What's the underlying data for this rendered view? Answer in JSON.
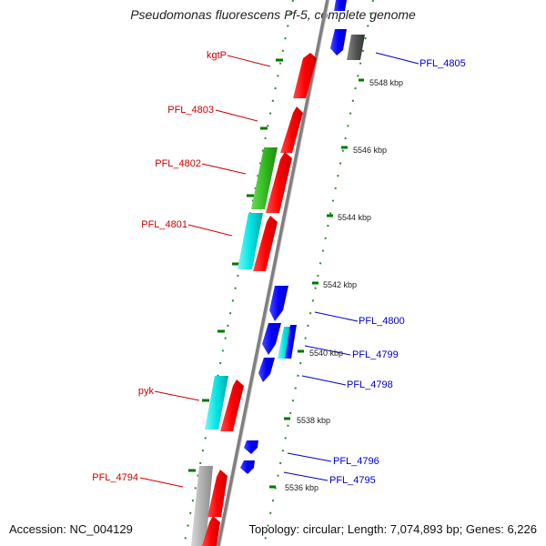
{
  "title": "Pseudomonas fluorescens Pf-5, complete genome",
  "footer": {
    "accession": "Accession: NC_004129",
    "summary": "Topology: circular; Length: 7,074,893 bp; Genes: 6,226"
  },
  "colors": {
    "forward_label": "#cc0000",
    "reverse_label": "#0000cc",
    "forward_gene": "#ff0000",
    "reverse_gene": "#0000ff",
    "rna": "#00e5e5",
    "other": "#33cc33",
    "gray": "#b0b0b0",
    "tick": "#007700",
    "backbone": "#8c8c8c"
  },
  "scale_labels": [
    "5548 kbp",
    "5546 kbp",
    "5544 kbp",
    "5542 kbp",
    "5540 kbp",
    "5538 kbp",
    "5536 kbp"
  ],
  "forward_labels": [
    "kgtP",
    "PFL_4803",
    "PFL_4802",
    "PFL_4801",
    "pyk",
    "PFL_4794"
  ],
  "reverse_labels": [
    "PFL_4805",
    "PFL_4800",
    "PFL_4799",
    "PFL_4798",
    "PFL_4796",
    "PFL_4795"
  ]
}
